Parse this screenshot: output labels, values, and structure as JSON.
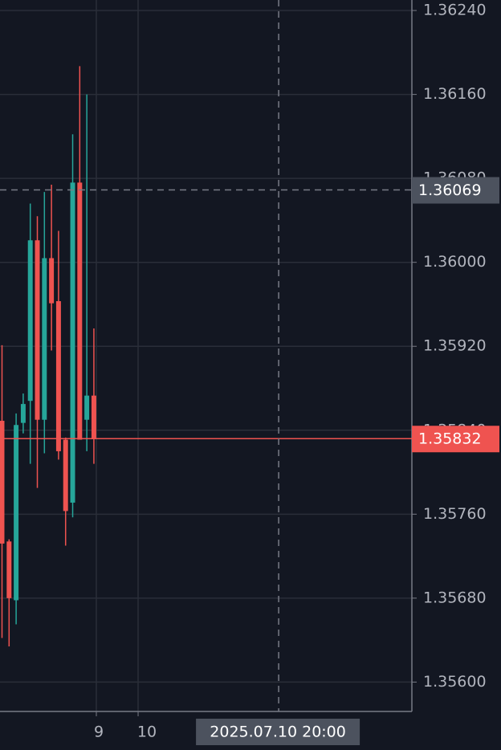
{
  "chart_data": {
    "type": "candlestick",
    "x": [
      0,
      1,
      2,
      3,
      4,
      5,
      6,
      7,
      8,
      9,
      10,
      11,
      12,
      13
    ],
    "open": [
      1.35849,
      1.35734,
      1.35678,
      1.35847,
      1.35868,
      1.36021,
      1.3585,
      1.36004,
      1.35963,
      1.35831,
      1.35771,
      1.36076,
      1.3585,
      1.35873
    ],
    "high": [
      1.35921,
      1.35736,
      1.35856,
      1.35875,
      1.36056,
      1.36044,
      1.36067,
      1.36074,
      1.3603,
      1.35833,
      1.36122,
      1.36187,
      1.3616,
      1.35937
    ],
    "low": [
      1.35642,
      1.35634,
      1.35655,
      1.35837,
      1.35808,
      1.35785,
      1.35818,
      1.35916,
      1.35812,
      1.3573,
      1.35757,
      1.35831,
      1.3582,
      1.35808
    ],
    "close": [
      1.35732,
      1.3568,
      1.35845,
      1.35865,
      1.36021,
      1.3585,
      1.36004,
      1.35961,
      1.3582,
      1.35763,
      1.36076,
      1.35831,
      1.35873,
      1.35832
    ],
    "up_color": "#26a69a",
    "down_color": "#ef5350",
    "xlim": [
      -0.284,
      58.0
    ],
    "xticks": [
      {
        "value": 13.35,
        "label": "9"
      },
      {
        "value": 19.26,
        "label": "10"
      }
    ],
    "ylim": [
      1.35572,
      1.3625
    ],
    "yticks": [
      {
        "value": 1.356,
        "label": "1.35600"
      },
      {
        "value": 1.3568,
        "label": "1.35680"
      },
      {
        "value": 1.3576,
        "label": "1.35760"
      },
      {
        "value": 1.3584,
        "label": "1.35840"
      },
      {
        "value": 1.3592,
        "label": "1.35920"
      },
      {
        "value": 1.36,
        "label": "1.36000"
      },
      {
        "value": 1.3608,
        "label": "1.36080"
      },
      {
        "value": 1.3616,
        "label": "1.36160"
      },
      {
        "value": 1.3624,
        "label": "1.36240"
      }
    ],
    "grid": true,
    "crosshair": {
      "x": 39.15,
      "x_label": "2025.07.10 20:00",
      "y": 1.36069
    }
  }
}
